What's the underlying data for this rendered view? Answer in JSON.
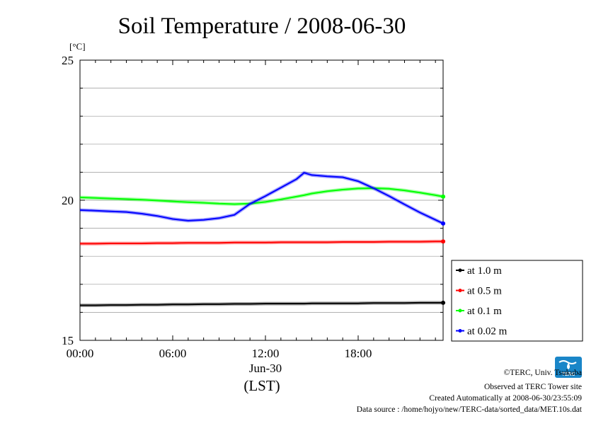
{
  "chart_data": {
    "type": "line",
    "title": "Soil Temperature / 2008-06-30",
    "ylabel": "[°C]",
    "xlabel": "(LST)",
    "x_date_label": "Jun-30",
    "x_tick_labels": [
      "00:00",
      "06:00",
      "12:00",
      "18:00"
    ],
    "y_tick_labels": [
      "15",
      "20",
      "25"
    ],
    "ylim": [
      15,
      25
    ],
    "xlim": [
      0,
      23.5
    ],
    "grid": "horizontal, every 1 °C",
    "legend_position": "right",
    "x": [
      0,
      1,
      2,
      3,
      4,
      5,
      6,
      7,
      8,
      9,
      10,
      11,
      12,
      13,
      14,
      14.5,
      15,
      16,
      17,
      18,
      19,
      20,
      21,
      22,
      23,
      23.5
    ],
    "series": [
      {
        "name": "at 1.0 m",
        "color": "#000000",
        "values": [
          16.25,
          16.25,
          16.26,
          16.26,
          16.27,
          16.27,
          16.28,
          16.28,
          16.29,
          16.29,
          16.3,
          16.3,
          16.31,
          16.31,
          16.31,
          16.31,
          16.32,
          16.32,
          16.32,
          16.32,
          16.33,
          16.33,
          16.33,
          16.34,
          16.34,
          16.34
        ]
      },
      {
        "name": "at 0.5 m",
        "color": "#ff0000",
        "values": [
          18.45,
          18.45,
          18.46,
          18.46,
          18.46,
          18.47,
          18.47,
          18.48,
          18.48,
          18.48,
          18.49,
          18.49,
          18.49,
          18.5,
          18.5,
          18.5,
          18.5,
          18.5,
          18.51,
          18.51,
          18.51,
          18.52,
          18.52,
          18.52,
          18.53,
          18.53
        ]
      },
      {
        "name": "at 0.1 m",
        "color": "#00ff00",
        "values": [
          20.1,
          20.08,
          20.06,
          20.04,
          20.02,
          19.99,
          19.96,
          19.93,
          19.91,
          19.88,
          19.86,
          19.88,
          19.94,
          20.03,
          20.13,
          20.18,
          20.24,
          20.32,
          20.38,
          20.42,
          20.43,
          20.41,
          20.35,
          20.27,
          20.18,
          20.13
        ]
      },
      {
        "name": "at 0.02 m",
        "color": "#0000ff",
        "values": [
          19.65,
          19.63,
          19.6,
          19.58,
          19.52,
          19.44,
          19.33,
          19.27,
          19.3,
          19.36,
          19.48,
          19.87,
          20.15,
          20.45,
          20.75,
          20.98,
          20.9,
          20.85,
          20.82,
          20.68,
          20.43,
          20.15,
          19.85,
          19.56,
          19.3,
          19.17
        ]
      }
    ]
  },
  "credits": {
    "copyright": "©TERC, Univ. Tsukuba",
    "observed": "Observed at TERC Tower site",
    "created": "Created Automatically at 2008-06-30/23:55:09",
    "source": "Data source : /home/hojyo/new/TERC-data/sorted_data/MET.10s.dat"
  },
  "logo": {
    "text": "TERC",
    "color": "#1a86c8"
  }
}
